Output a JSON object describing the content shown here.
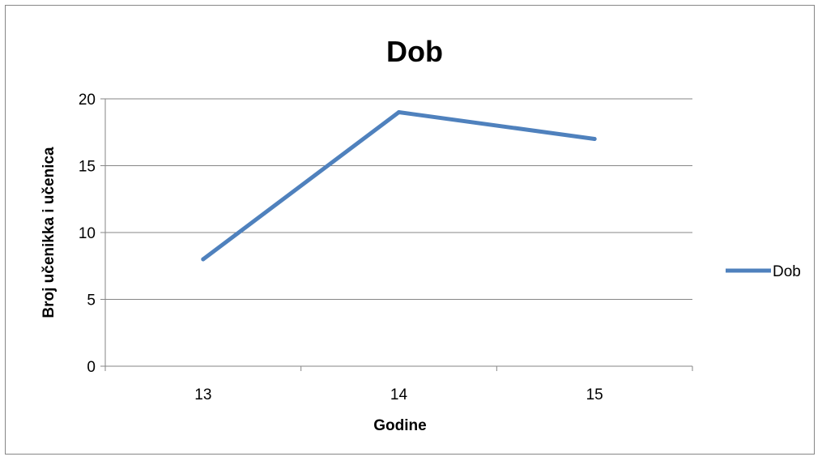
{
  "chart_data": {
    "type": "line",
    "title": "Dob",
    "xlabel": "Godine",
    "ylabel": "Broj učenikka i učenica",
    "categories": [
      "13",
      "14",
      "15"
    ],
    "series": [
      {
        "name": "Dob",
        "values": [
          8,
          19,
          17
        ],
        "color": "#4F81BD"
      }
    ],
    "ylim": [
      0,
      20
    ],
    "yticks": [
      0,
      5,
      10,
      15,
      20
    ],
    "grid": true,
    "legend": "right"
  }
}
